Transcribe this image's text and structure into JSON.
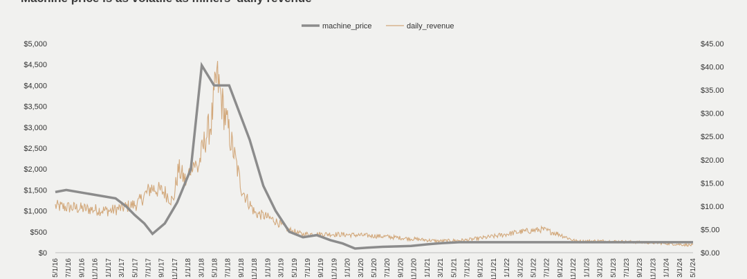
{
  "chart_data": {
    "type": "line",
    "title": "Machine price is as volatile as miners' daily revenue",
    "legend_position": "top-center",
    "grid": false,
    "left_axis": {
      "range": [
        0,
        5000
      ],
      "tick_labels": [
        "$0",
        "$500",
        "$1,000",
        "$1,500",
        "$2,000",
        "$2,500",
        "$3,000",
        "$3,500",
        "$4,000",
        "$4,500",
        "$5,000"
      ]
    },
    "right_axis": {
      "range": [
        0,
        45
      ],
      "tick_labels": [
        "$0.00",
        "$5.00",
        "$10.00",
        "$15.00",
        "$20.00",
        "$25.00",
        "$30.00",
        "$35.00",
        "$40.00",
        "$45.00"
      ]
    },
    "x_tick_labels": [
      "5/1/16",
      "7/1/16",
      "9/1/16",
      "11/1/16",
      "1/1/17",
      "3/1/17",
      "5/1/17",
      "7/1/17",
      "9/1/17",
      "11/1/17",
      "1/1/18",
      "3/1/18",
      "5/1/18",
      "7/1/18",
      "9/1/18",
      "11/1/18",
      "1/1/19",
      "3/1/19",
      "5/1/19",
      "7/1/19",
      "9/1/19",
      "11/1/19",
      "1/1/20",
      "3/1/20",
      "5/1/20",
      "7/1/20",
      "9/1/20",
      "11/1/20",
      "1/1/21",
      "3/1/21",
      "5/1/21",
      "7/1/21",
      "9/1/21",
      "11/1/21",
      "1/1/22",
      "3/1/22",
      "5/1/22",
      "7/1/22",
      "9/1/22",
      "11/1/22",
      "1/1/23",
      "3/1/23",
      "5/1/23",
      "7/1/23",
      "9/1/23",
      "11/1/23",
      "1/1/24",
      "3/1/24",
      "5/1/24"
    ],
    "series": [
      {
        "name": "machine_price",
        "axis": "left",
        "color": "#8c8c8c",
        "style": "step",
        "x": [
          0.0,
          0.0,
          0.4,
          0.4,
          2.2,
          2.2,
          2.6,
          2.6,
          2.9,
          2.9,
          3.25,
          3.25,
          3.55,
          3.55,
          4.0,
          4.0,
          4.45,
          4.45,
          4.95,
          4.95,
          5.35,
          5.35,
          5.8,
          5.8,
          6.35,
          6.35,
          7.1,
          7.1,
          7.6,
          7.6,
          8.05,
          8.05,
          8.55,
          8.55,
          9.05,
          9.05,
          9.55,
          9.55,
          10.05,
          10.05,
          10.5,
          10.5,
          10.95,
          10.95,
          11.4,
          11.4,
          11.95,
          11.95,
          12.5,
          12.5,
          13.0,
          13.0,
          13.6,
          13.6,
          14.15,
          14.15,
          14.75,
          14.75,
          15.3,
          15.3,
          16.3,
          16.3,
          18.6,
          18.6,
          22.05,
          22.05,
          23.3
        ],
        "y": [
          1450,
          1450,
          1500,
          1500,
          1300,
          1300,
          1100,
          1100,
          900,
          900,
          700,
          700,
          450,
          450,
          700,
          700,
          1200,
          1200,
          2000,
          2000,
          4480,
          4480,
          4000,
          4000,
          4000,
          4000,
          2700,
          2700,
          1600,
          1600,
          1000,
          1000,
          500,
          500,
          370,
          370,
          420,
          420,
          300,
          300,
          220,
          220,
          100,
          100,
          120,
          120,
          140,
          140,
          150,
          150,
          160,
          160,
          200,
          200,
          230,
          230,
          250,
          250,
          250,
          250,
          250,
          250,
          250,
          250,
          250,
          250,
          250
        ]
      },
      {
        "name": "daily_revenue",
        "axis": "right",
        "color": "#d2a87b",
        "style": "line",
        "x": [
          0.0,
          1.0,
          2.0,
          3.0,
          3.5,
          4.0,
          4.3,
          4.5,
          4.8,
          5.0,
          5.2,
          5.5,
          5.7,
          5.9,
          6.1,
          6.3,
          6.5,
          6.8,
          7.0,
          7.3,
          7.6,
          8.0,
          8.5,
          9.0,
          10.0,
          11.0,
          12.0,
          13.0,
          14.0,
          15.0,
          16.0,
          17.0,
          17.8,
          18.4,
          19.0,
          20.0,
          21.0,
          22.0,
          23.3
        ],
        "y": [
          10.0,
          9.5,
          9.0,
          10.5,
          14.0,
          13.0,
          11.0,
          18.0,
          15.0,
          20.0,
          18.0,
          25.0,
          28.0,
          38.0,
          32.0,
          27.0,
          22.0,
          14.0,
          11.5,
          8.5,
          8.0,
          7.0,
          5.0,
          4.0,
          4.0,
          3.8,
          3.5,
          3.0,
          2.5,
          2.7,
          3.5,
          4.5,
          5.0,
          4.0,
          2.5,
          2.5,
          2.3,
          2.1,
          1.6
        ],
        "x_scale_note": ""
      }
    ]
  }
}
